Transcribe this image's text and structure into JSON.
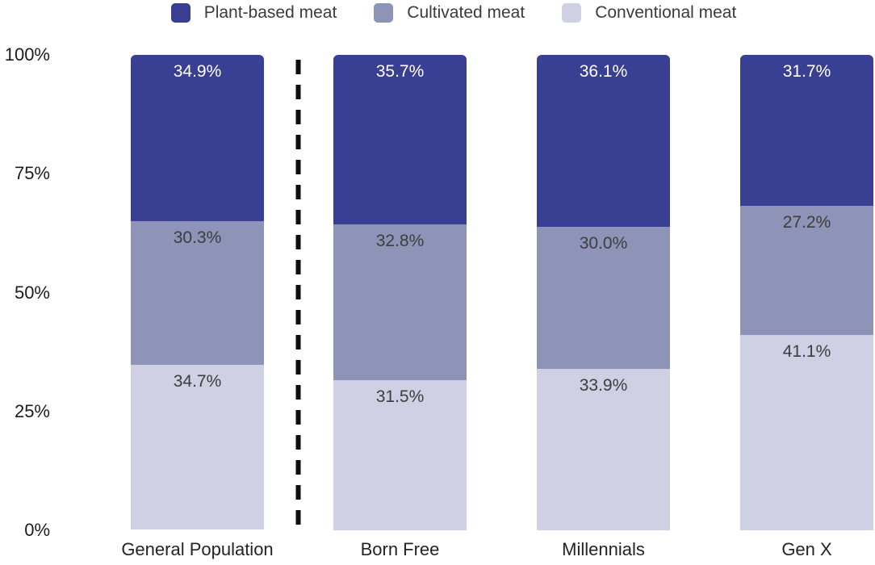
{
  "chart_data": {
    "type": "bar",
    "stacked": true,
    "title": "",
    "categories": [
      "General Population",
      "Born Free",
      "Millennials",
      "Gen X"
    ],
    "series": [
      {
        "name": "Plant-based meat",
        "color": "#393f93",
        "label_color": "#ffffff",
        "values": [
          34.9,
          35.7,
          36.1,
          31.7
        ]
      },
      {
        "name": "Cultivated meat",
        "color": "#8e93b8",
        "label_color": "#3d3d3d",
        "values": [
          30.3,
          32.8,
          30.0,
          27.2
        ]
      },
      {
        "name": "Conventional meat",
        "color": "#cfd0e4",
        "label_color": "#3d3d3d",
        "values": [
          34.7,
          31.5,
          33.9,
          41.1
        ]
      }
    ],
    "value_suffix": "%",
    "value_decimals": 1,
    "y_ticks": [
      {
        "label": "100%",
        "value": 100
      },
      {
        "label": "75%",
        "value": 75
      },
      {
        "label": "50%",
        "value": 50
      },
      {
        "label": "25%",
        "value": 25
      },
      {
        "label": "0%",
        "value": 0
      }
    ],
    "ylim": [
      0,
      100
    ],
    "grid": false,
    "legend_position": "top",
    "separator": {
      "style": "dashed",
      "color": "#0d0d0d",
      "after_category": "General Population"
    }
  }
}
